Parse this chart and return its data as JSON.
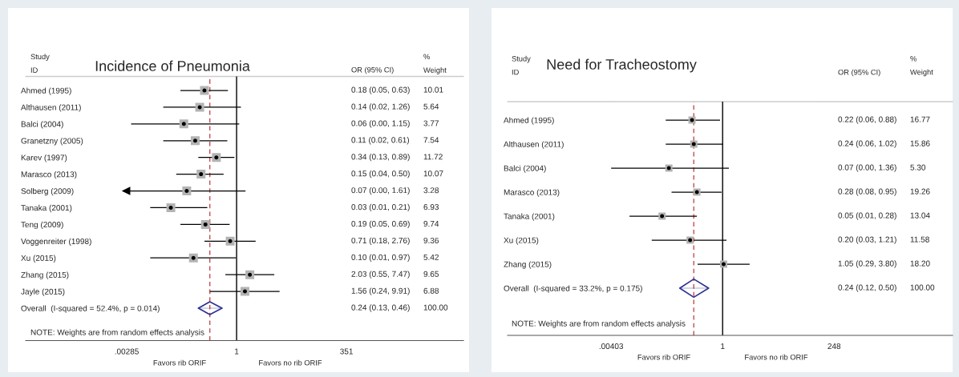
{
  "chart_data": [
    {
      "type": "scatter",
      "title": "Incidence of Pneumonia",
      "orientation": "horizontal",
      "log": "x",
      "grid": false,
      "legend": false,
      "categories": [
        "Ahmed (1995)",
        "Althausen (2011)",
        "Balci (2004)",
        "Granetzny (2005)",
        "Karev (1997)",
        "Marasco (2013)",
        "Solberg (2009)",
        "Tanaka (2001)",
        "Teng (2009)",
        "Voggenreiter (1998)",
        "Xu (2015)",
        "Zhang (2015)",
        "Jayle (2015)",
        "Overall  (I-squared = 52.4%, p = 0.014)"
      ],
      "series": [
        {
          "marker": "square",
          "color": "#b3b3b3",
          "values": [
            0.18,
            0.14,
            0.06,
            0.11,
            0.34,
            0.15,
            0.07,
            0.03,
            0.19,
            0.71,
            0.1,
            2.03,
            1.56,
            null
          ],
          "errors": [
            [
              0.05,
              0.63
            ],
            [
              0.02,
              1.26
            ],
            [
              0.0036,
              1.15
            ],
            [
              0.02,
              0.61
            ],
            [
              0.13,
              0.89
            ],
            [
              0.04,
              0.5
            ],
            [
              0.0028,
              1.61
            ],
            [
              0.01,
              0.21
            ],
            [
              0.05,
              0.69
            ],
            [
              0.18,
              2.76
            ],
            [
              0.01,
              0.97
            ],
            [
              0.55,
              7.47
            ],
            [
              0.24,
              9.91
            ],
            null
          ]
        },
        {
          "marker": "diamond",
          "color": "#2e3192",
          "values": [
            null,
            null,
            null,
            null,
            null,
            null,
            null,
            null,
            null,
            null,
            null,
            null,
            null,
            0.24
          ],
          "errors": [
            null,
            null,
            null,
            null,
            null,
            null,
            null,
            null,
            null,
            null,
            null,
            null,
            null,
            [
              0.13,
              0.46
            ]
          ]
        }
      ],
      "xlim": [
        1.3e-05,
        180000
      ],
      "xticks": [
        {
          "value": 0.00285,
          "label": ".00285"
        },
        1,
        351
      ],
      "ref_lines": [
        {
          "axis": "x",
          "value": 1,
          "color": "#000000",
          "line_style": "solid"
        },
        {
          "axis": "x",
          "value": 0.24,
          "color": "#c0504d",
          "line_style": "dashed"
        }
      ],
      "annotations": [
        "Study\nID",
        "OR (95% CI)",
        "%\nWeight",
        "NOTE: Weights are from random effects analysis",
        "Favors rib ORIF",
        "Favors no rib ORIF",
        "0.18 (0.05, 0.63)",
        "0.14 (0.02, 1.26)",
        "0.06 (0.00, 1.15)",
        "0.11 (0.02, 0.61)",
        "0.34 (0.13, 0.89)",
        "0.15 (0.04, 0.50)",
        "0.07 (0.00, 1.61)",
        "0.03 (0.01, 0.21)",
        "0.19 (0.05, 0.69)",
        "0.71 (0.18, 2.76)",
        "0.10 (0.01, 0.97)",
        "2.03 (0.55, 7.47)",
        "1.56 (0.24, 9.91)",
        "0.24 (0.13, 0.46)",
        "10.01",
        "5.64",
        "3.77",
        "7.54",
        "11.72",
        "10.07",
        "3.28",
        "6.93",
        "9.74",
        "9.36",
        "5.42",
        "9.65",
        "6.88",
        "100.00"
      ]
    },
    {
      "type": "scatter",
      "title": "Need for Tracheostomy",
      "orientation": "horizontal",
      "log": "x",
      "grid": false,
      "legend": false,
      "categories": [
        "Ahmed (1995)",
        "Althausen (2011)",
        "Balci (2004)",
        "Marasco (2013)",
        "Tanaka (2001)",
        "Xu (2015)",
        "Zhang (2015)",
        "Overall  (I-squared = 33.2%, p = 0.175)"
      ],
      "series": [
        {
          "marker": "square",
          "color": "#b3b3b3",
          "values": [
            0.22,
            0.24,
            0.07,
            0.28,
            0.05,
            0.2,
            1.05,
            null
          ],
          "errors": [
            [
              0.06,
              0.88
            ],
            [
              0.06,
              1.02
            ],
            [
              0.00403,
              1.36
            ],
            [
              0.08,
              0.95
            ],
            [
              0.01,
              0.28
            ],
            [
              0.03,
              1.21
            ],
            [
              0.29,
              3.8
            ],
            null
          ]
        },
        {
          "marker": "diamond",
          "color": "#2e3192",
          "values": [
            null,
            null,
            null,
            null,
            null,
            null,
            null,
            0.24
          ],
          "errors": [
            null,
            null,
            null,
            null,
            null,
            null,
            null,
            [
              0.12,
              0.5
            ]
          ]
        }
      ],
      "xlim": [
        2.4e-05,
        87000
      ],
      "xticks": [
        {
          "value": 0.00403,
          "label": ".00403"
        },
        1,
        248
      ],
      "ref_lines": [
        {
          "axis": "x",
          "value": 1,
          "color": "#000000",
          "line_style": "solid"
        },
        {
          "axis": "x",
          "value": 0.24,
          "color": "#c0504d",
          "line_style": "dashed"
        }
      ],
      "annotations": [
        "Study\nID",
        "OR (95% CI)",
        "%\nWeight",
        "NOTE: Weights are from random effects analysis",
        "Favors rib ORIF",
        "Favors no rib ORIF",
        "0.22 (0.06, 0.88)",
        "0.24 (0.06, 1.02)",
        "0.07 (0.00, 1.36)",
        "0.28 (0.08, 0.95)",
        "0.05 (0.01, 0.28)",
        "0.20 (0.03, 1.21)",
        "1.05 (0.29, 3.80)",
        "0.24 (0.12, 0.50)",
        "16.77",
        "15.86",
        "5.30",
        "19.26",
        "13.04",
        "11.58",
        "18.20",
        "100.00"
      ]
    }
  ]
}
